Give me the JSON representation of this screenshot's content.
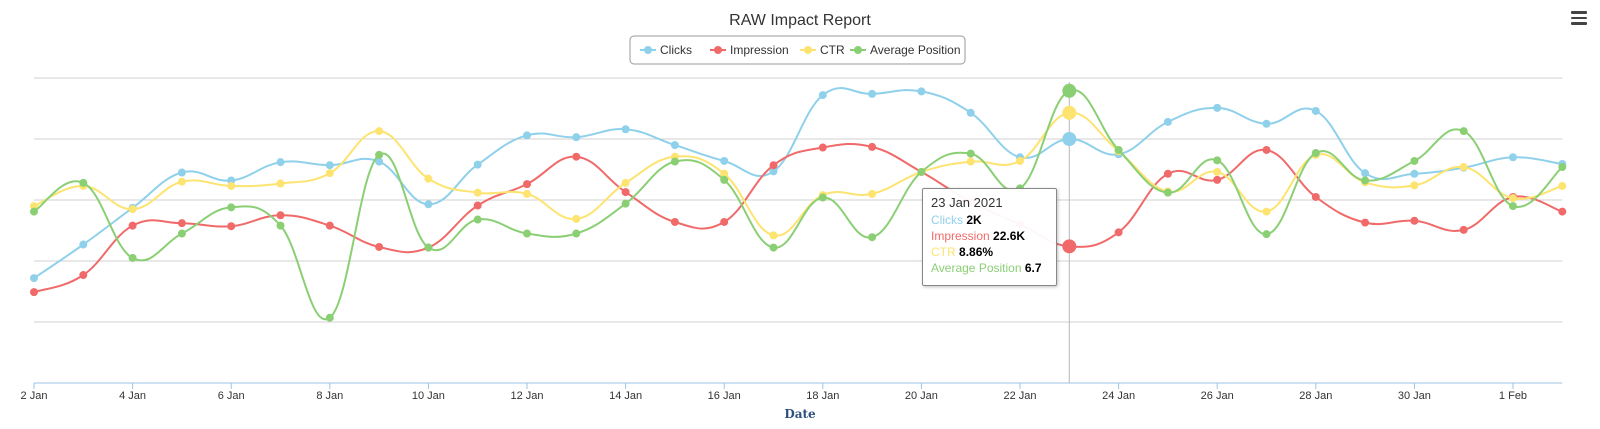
{
  "menu": {
    "icon": "hamburger-menu-icon"
  },
  "chart_data": {
    "type": "line",
    "title": "RAW Impact Report",
    "xlabel": "Date",
    "ylabel": "",
    "ylim": [
      0,
      5
    ],
    "grid": true,
    "legend": "top-center",
    "x": [
      "2 Jan",
      "3 Jan",
      "4 Jan",
      "5 Jan",
      "6 Jan",
      "7 Jan",
      "8 Jan",
      "9 Jan",
      "10 Jan",
      "11 Jan",
      "12 Jan",
      "13 Jan",
      "14 Jan",
      "15 Jan",
      "16 Jan",
      "17 Jan",
      "18 Jan",
      "19 Jan",
      "20 Jan",
      "21 Jan",
      "22 Jan",
      "23 Jan",
      "24 Jan",
      "25 Jan",
      "26 Jan",
      "27 Jan",
      "28 Jan",
      "29 Jan",
      "30 Jan",
      "31 Jan",
      "1 Feb",
      "2 Feb"
    ],
    "tick_labels": [
      "2 Jan",
      "4 Jan",
      "6 Jan",
      "8 Jan",
      "10 Jan",
      "12 Jan",
      "14 Jan",
      "16 Jan",
      "18 Jan",
      "20 Jan",
      "22 Jan",
      "24 Jan",
      "26 Jan",
      "28 Jan",
      "30 Jan",
      "1 Feb"
    ],
    "series": [
      {
        "name": "Clicks",
        "color": "#8fd0ea",
        "values": [
          1.72,
          2.27,
          2.87,
          3.45,
          3.32,
          3.62,
          3.57,
          3.63,
          2.93,
          3.58,
          4.06,
          4.03,
          4.16,
          3.9,
          3.64,
          3.47,
          4.72,
          4.74,
          4.78,
          4.43,
          3.7,
          4.0,
          3.75,
          4.28,
          4.51,
          4.25,
          4.46,
          3.44,
          3.43,
          3.53,
          3.7,
          3.59
        ]
      },
      {
        "name": "Impression",
        "color": "#f06a6a",
        "values": [
          1.49,
          1.77,
          2.58,
          2.62,
          2.57,
          2.75,
          2.58,
          2.23,
          2.22,
          2.91,
          3.26,
          3.71,
          3.13,
          2.64,
          2.64,
          3.57,
          3.86,
          3.87,
          3.46,
          2.97,
          2.6,
          2.24,
          2.47,
          3.43,
          3.33,
          3.82,
          3.05,
          2.63,
          2.66,
          2.51,
          3.05,
          2.81
        ]
      },
      {
        "name": "CTR",
        "color": "#fde36f",
        "values": [
          2.9,
          3.23,
          2.85,
          3.3,
          3.23,
          3.27,
          3.44,
          4.13,
          3.35,
          3.12,
          3.1,
          2.69,
          3.28,
          3.71,
          3.43,
          2.42,
          3.08,
          3.1,
          3.46,
          3.63,
          3.64,
          4.43,
          3.8,
          3.14,
          3.46,
          2.81,
          3.74,
          3.29,
          3.24,
          3.54,
          3.03,
          3.23
        ]
      },
      {
        "name": "Average Position",
        "color": "#8bcf75",
        "values": [
          2.81,
          3.28,
          2.05,
          2.45,
          2.88,
          2.58,
          1.07,
          3.74,
          2.22,
          2.68,
          2.45,
          2.45,
          2.94,
          3.63,
          3.33,
          2.22,
          3.04,
          2.39,
          3.46,
          3.76,
          3.19,
          4.79,
          3.82,
          3.12,
          3.65,
          2.44,
          3.77,
          3.32,
          3.64,
          4.13,
          2.9,
          3.54
        ]
      }
    ],
    "tooltip": {
      "date": "23 Jan 2021",
      "index": 21,
      "rows": [
        {
          "label": "Clicks",
          "value": "2K"
        },
        {
          "label": "Impression",
          "value": "22.6K"
        },
        {
          "label": "CTR",
          "value": "8.86%"
        },
        {
          "label": "Average Position",
          "value": "6.7"
        }
      ]
    }
  }
}
